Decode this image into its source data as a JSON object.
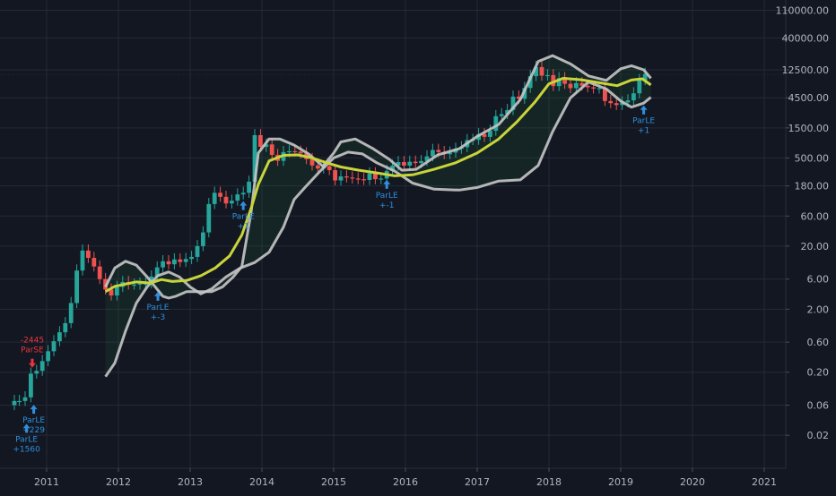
{
  "chart_data": {
    "type": "candlestick",
    "y_scale": "log",
    "ylim": [
      0.006,
      160000
    ],
    "xlim": [
      2010.35,
      2021.3
    ],
    "grid": true,
    "y_ticks": [
      {
        "value": 110000,
        "label": "110000.00"
      },
      {
        "value": 40000,
        "label": "40000.00"
      },
      {
        "value": 12500,
        "label": "12500.00"
      },
      {
        "value": 4500,
        "label": "4500.00"
      },
      {
        "value": 1500,
        "label": "1500.00"
      },
      {
        "value": 500,
        "label": "500.00"
      },
      {
        "value": 180,
        "label": "180.00"
      },
      {
        "value": 60,
        "label": "60.00"
      },
      {
        "value": 20,
        "label": "20.00"
      },
      {
        "value": 6,
        "label": "6.00"
      },
      {
        "value": 2,
        "label": "2.00"
      },
      {
        "value": 0.6,
        "label": "0.60"
      },
      {
        "value": 0.2,
        "label": "0.20"
      },
      {
        "value": 0.06,
        "label": "0.06"
      },
      {
        "value": 0.02,
        "label": "0.02"
      }
    ],
    "x_ticks": [
      {
        "value": 2011,
        "label": "2011"
      },
      {
        "value": 2012,
        "label": "2012"
      },
      {
        "value": 2013,
        "label": "2013"
      },
      {
        "value": 2014,
        "label": "2014"
      },
      {
        "value": 2015,
        "label": "2015"
      },
      {
        "value": 2016,
        "label": "2016"
      },
      {
        "value": 2017,
        "label": "2017"
      },
      {
        "value": 2018,
        "label": "2018"
      },
      {
        "value": 2019,
        "label": "2019"
      },
      {
        "value": 2020,
        "label": "2020"
      },
      {
        "value": 2021,
        "label": "2021"
      }
    ],
    "last_price_line": 10500,
    "colors": {
      "up": "#26a69a",
      "down": "#ef5350",
      "upper_band": "#c7c7c7",
      "lower_band": "#c7c7c7",
      "mid_line": "#c8d43a",
      "signal_blue": "#2f8fdc",
      "signal_red": "#e8363c",
      "price_line": "#26a69a"
    },
    "candles": [
      [
        2010.55,
        0.06,
        0.07
      ],
      [
        2010.62,
        0.07,
        0.07
      ],
      [
        2010.7,
        0.07,
        0.08
      ],
      [
        2010.78,
        0.08,
        0.19
      ],
      [
        2010.86,
        0.19,
        0.21
      ],
      [
        2010.94,
        0.21,
        0.3
      ],
      [
        2011.02,
        0.3,
        0.43
      ],
      [
        2011.1,
        0.43,
        0.62
      ],
      [
        2011.18,
        0.62,
        0.86
      ],
      [
        2011.26,
        0.86,
        1.2
      ],
      [
        2011.34,
        1.2,
        2.5
      ],
      [
        2011.42,
        2.5,
        8.2
      ],
      [
        2011.5,
        8.2,
        17
      ],
      [
        2011.58,
        17,
        13
      ],
      [
        2011.66,
        13,
        9.5
      ],
      [
        2011.74,
        9.5,
        6
      ],
      [
        2011.82,
        6,
        4.1
      ],
      [
        2011.9,
        4.1,
        3.3
      ],
      [
        2011.98,
        3.3,
        4.5
      ],
      [
        2012.06,
        4.5,
        5.4
      ],
      [
        2012.14,
        5.4,
        4.9
      ],
      [
        2012.22,
        4.9,
        4.9
      ],
      [
        2012.3,
        4.9,
        5.1
      ],
      [
        2012.38,
        5.1,
        5.1
      ],
      [
        2012.46,
        5.1,
        6.6
      ],
      [
        2012.54,
        6.6,
        9.2
      ],
      [
        2012.62,
        9.2,
        11.5
      ],
      [
        2012.7,
        11.5,
        10.3
      ],
      [
        2012.78,
        10.3,
        12.3
      ],
      [
        2012.86,
        12.3,
        11.2
      ],
      [
        2012.94,
        11.2,
        12.5
      ],
      [
        2013.02,
        12.5,
        13.5
      ],
      [
        2013.1,
        13.5,
        20
      ],
      [
        2013.18,
        20,
        33
      ],
      [
        2013.26,
        33,
        93
      ],
      [
        2013.34,
        93,
        140
      ],
      [
        2013.42,
        140,
        121
      ],
      [
        2013.5,
        121,
        95
      ],
      [
        2013.58,
        95,
        105
      ],
      [
        2013.66,
        105,
        132
      ],
      [
        2013.74,
        132,
        140
      ],
      [
        2013.82,
        140,
        210
      ],
      [
        2013.9,
        210,
        1150
      ],
      [
        2013.98,
        1150,
        750
      ],
      [
        2014.06,
        750,
        820
      ],
      [
        2014.14,
        820,
        560
      ],
      [
        2014.22,
        560,
        450
      ],
      [
        2014.3,
        450,
        620
      ],
      [
        2014.38,
        620,
        640
      ],
      [
        2014.46,
        640,
        630
      ],
      [
        2014.54,
        630,
        590
      ],
      [
        2014.62,
        590,
        480
      ],
      [
        2014.7,
        480,
        380
      ],
      [
        2014.78,
        380,
        340
      ],
      [
        2014.86,
        340,
        370
      ],
      [
        2014.94,
        370,
        320
      ],
      [
        2015.02,
        320,
        220
      ],
      [
        2015.1,
        220,
        255
      ],
      [
        2015.18,
        255,
        245
      ],
      [
        2015.26,
        245,
        236
      ],
      [
        2015.34,
        236,
        230
      ],
      [
        2015.42,
        230,
        224
      ],
      [
        2015.5,
        224,
        285
      ],
      [
        2015.58,
        285,
        230
      ],
      [
        2015.66,
        230,
        236
      ],
      [
        2015.74,
        236,
        312
      ],
      [
        2015.82,
        312,
        378
      ],
      [
        2015.9,
        378,
        430
      ],
      [
        2015.98,
        430,
        378
      ],
      [
        2016.06,
        378,
        436
      ],
      [
        2016.14,
        436,
        415
      ],
      [
        2016.22,
        415,
        448
      ],
      [
        2016.3,
        448,
        530
      ],
      [
        2016.38,
        530,
        670
      ],
      [
        2016.46,
        670,
        620
      ],
      [
        2016.54,
        620,
        575
      ],
      [
        2016.62,
        575,
        608
      ],
      [
        2016.7,
        608,
        700
      ],
      [
        2016.78,
        700,
        740
      ],
      [
        2016.86,
        740,
        960
      ],
      [
        2016.94,
        960,
        970
      ],
      [
        2017.02,
        970,
        1190
      ],
      [
        2017.1,
        1190,
        1080
      ],
      [
        2017.18,
        1080,
        1350
      ],
      [
        2017.26,
        1350,
        2300
      ],
      [
        2017.34,
        2300,
        2480
      ],
      [
        2017.42,
        2480,
        2875
      ],
      [
        2017.5,
        2875,
        4700
      ],
      [
        2017.58,
        4700,
        4340
      ],
      [
        2017.66,
        4340,
        6450
      ],
      [
        2017.74,
        6450,
        9900
      ],
      [
        2017.82,
        9900,
        13800
      ],
      [
        2017.9,
        13800,
        10100
      ],
      [
        2017.98,
        10100,
        10300
      ],
      [
        2018.06,
        10300,
        6900
      ],
      [
        2018.14,
        6900,
        9200
      ],
      [
        2018.22,
        9200,
        7500
      ],
      [
        2018.3,
        7500,
        6400
      ],
      [
        2018.38,
        6400,
        7700
      ],
      [
        2018.46,
        7700,
        7000
      ],
      [
        2018.54,
        7000,
        6600
      ],
      [
        2018.62,
        6600,
        6300
      ],
      [
        2018.7,
        6300,
        6400
      ],
      [
        2018.78,
        6400,
        4000
      ],
      [
        2018.86,
        4000,
        3700
      ],
      [
        2018.94,
        3700,
        3450
      ],
      [
        2019.02,
        3450,
        3800
      ],
      [
        2019.1,
        3800,
        4100
      ],
      [
        2019.18,
        4100,
        5300
      ],
      [
        2019.26,
        5300,
        8600
      ],
      [
        2019.34,
        8600,
        10800
      ]
    ],
    "upper_band": [
      [
        2011.82,
        4.5
      ],
      [
        2011.95,
        9
      ],
      [
        2012.1,
        11.5
      ],
      [
        2012.25,
        10
      ],
      [
        2012.4,
        6.5
      ],
      [
        2012.55,
        4
      ],
      [
        2012.62,
        3.2
      ],
      [
        2012.7,
        3
      ],
      [
        2012.8,
        3.2
      ],
      [
        2012.95,
        3.8
      ],
      [
        2013.1,
        3.8
      ],
      [
        2013.3,
        3.8
      ],
      [
        2013.45,
        4.5
      ],
      [
        2013.6,
        6.5
      ],
      [
        2013.72,
        9.5
      ],
      [
        2013.85,
        70
      ],
      [
        2013.95,
        600
      ],
      [
        2014.1,
        1000
      ],
      [
        2014.25,
        1000
      ],
      [
        2014.45,
        800
      ],
      [
        2014.65,
        580
      ],
      [
        2014.85,
        370
      ],
      [
        2015.0,
        600
      ],
      [
        2015.1,
        900
      ],
      [
        2015.3,
        1000
      ],
      [
        2015.55,
        700
      ],
      [
        2015.78,
        470
      ],
      [
        2015.95,
        320
      ],
      [
        2016.15,
        330
      ],
      [
        2016.45,
        560
      ],
      [
        2016.75,
        700
      ],
      [
        2017.0,
        1100
      ],
      [
        2017.3,
        1700
      ],
      [
        2017.6,
        4200
      ],
      [
        2017.85,
        17000
      ],
      [
        2018.05,
        21000
      ],
      [
        2018.3,
        15500
      ],
      [
        2018.55,
        10000
      ],
      [
        2018.8,
        8500
      ],
      [
        2019.0,
        13000
      ],
      [
        2019.15,
        14500
      ],
      [
        2019.32,
        12500
      ],
      [
        2019.42,
        9200
      ]
    ],
    "lower_band": [
      [
        2011.82,
        0.17
      ],
      [
        2011.95,
        0.28
      ],
      [
        2012.1,
        0.9
      ],
      [
        2012.25,
        2.5
      ],
      [
        2012.4,
        4.5
      ],
      [
        2012.55,
        6.8
      ],
      [
        2012.7,
        7.8
      ],
      [
        2012.85,
        6.5
      ],
      [
        2013.0,
        4.5
      ],
      [
        2013.15,
        3.5
      ],
      [
        2013.3,
        4.2
      ],
      [
        2013.5,
        6.5
      ],
      [
        2013.7,
        9
      ],
      [
        2013.9,
        11
      ],
      [
        2014.1,
        16
      ],
      [
        2014.3,
        40
      ],
      [
        2014.45,
        110
      ],
      [
        2014.6,
        170
      ],
      [
        2014.8,
        300
      ],
      [
        2015.0,
        500
      ],
      [
        2015.2,
        620
      ],
      [
        2015.4,
        580
      ],
      [
        2015.6,
        420
      ],
      [
        2015.85,
        310
      ],
      [
        2016.1,
        200
      ],
      [
        2016.4,
        160
      ],
      [
        2016.75,
        155
      ],
      [
        2017.0,
        170
      ],
      [
        2017.3,
        215
      ],
      [
        2017.6,
        225
      ],
      [
        2017.85,
        380
      ],
      [
        2018.05,
        1300
      ],
      [
        2018.3,
        4500
      ],
      [
        2018.55,
        8000
      ],
      [
        2018.8,
        6200
      ],
      [
        2019.0,
        4000
      ],
      [
        2019.15,
        3200
      ],
      [
        2019.32,
        3700
      ],
      [
        2019.42,
        4600
      ]
    ],
    "mid_line": [
      [
        2011.82,
        3.8
      ],
      [
        2011.95,
        4.6
      ],
      [
        2012.1,
        5
      ],
      [
        2012.25,
        5.4
      ],
      [
        2012.45,
        5.2
      ],
      [
        2012.6,
        5.9
      ],
      [
        2012.75,
        5.5
      ],
      [
        2012.95,
        5.7
      ],
      [
        2013.15,
        6.8
      ],
      [
        2013.35,
        9
      ],
      [
        2013.55,
        14
      ],
      [
        2013.72,
        30
      ],
      [
        2013.85,
        80
      ],
      [
        2013.95,
        190
      ],
      [
        2014.1,
        450
      ],
      [
        2014.3,
        550
      ],
      [
        2014.5,
        560
      ],
      [
        2014.7,
        500
      ],
      [
        2014.9,
        420
      ],
      [
        2015.1,
        360
      ],
      [
        2015.35,
        320
      ],
      [
        2015.6,
        290
      ],
      [
        2015.85,
        260
      ],
      [
        2016.1,
        270
      ],
      [
        2016.4,
        330
      ],
      [
        2016.7,
        420
      ],
      [
        2017.0,
        600
      ],
      [
        2017.3,
        1000
      ],
      [
        2017.55,
        1850
      ],
      [
        2017.8,
        3800
      ],
      [
        2018.0,
        7500
      ],
      [
        2018.2,
        9200
      ],
      [
        2018.45,
        8700
      ],
      [
        2018.7,
        7800
      ],
      [
        2018.95,
        7000
      ],
      [
        2019.15,
        8600
      ],
      [
        2019.3,
        9000
      ],
      [
        2019.42,
        7200
      ]
    ],
    "signals": [
      {
        "kind": "long",
        "x": 2010.72,
        "y": 0.025,
        "lines": [
          "ParLE",
          "+1560"
        ]
      },
      {
        "kind": "long",
        "x": 2010.82,
        "y": 0.05,
        "lines": [
          "ParLE",
          "+229"
        ]
      },
      {
        "kind": "short",
        "x": 2010.8,
        "y": 0.35,
        "lines": [
          "-2445",
          "ParSE"
        ]
      },
      {
        "kind": "long",
        "x": 2012.55,
        "y": 3.1,
        "lines": [
          "ParLE",
          "+-3"
        ]
      },
      {
        "kind": "long",
        "x": 2013.74,
        "y": 85,
        "lines": [
          "ParLE",
          "+1"
        ]
      },
      {
        "kind": "long",
        "x": 2015.74,
        "y": 185,
        "lines": [
          "ParLE",
          "+-1"
        ]
      },
      {
        "kind": "long",
        "x": 2019.32,
        "y": 2800,
        "lines": [
          "ParLE",
          "+1"
        ]
      }
    ]
  }
}
